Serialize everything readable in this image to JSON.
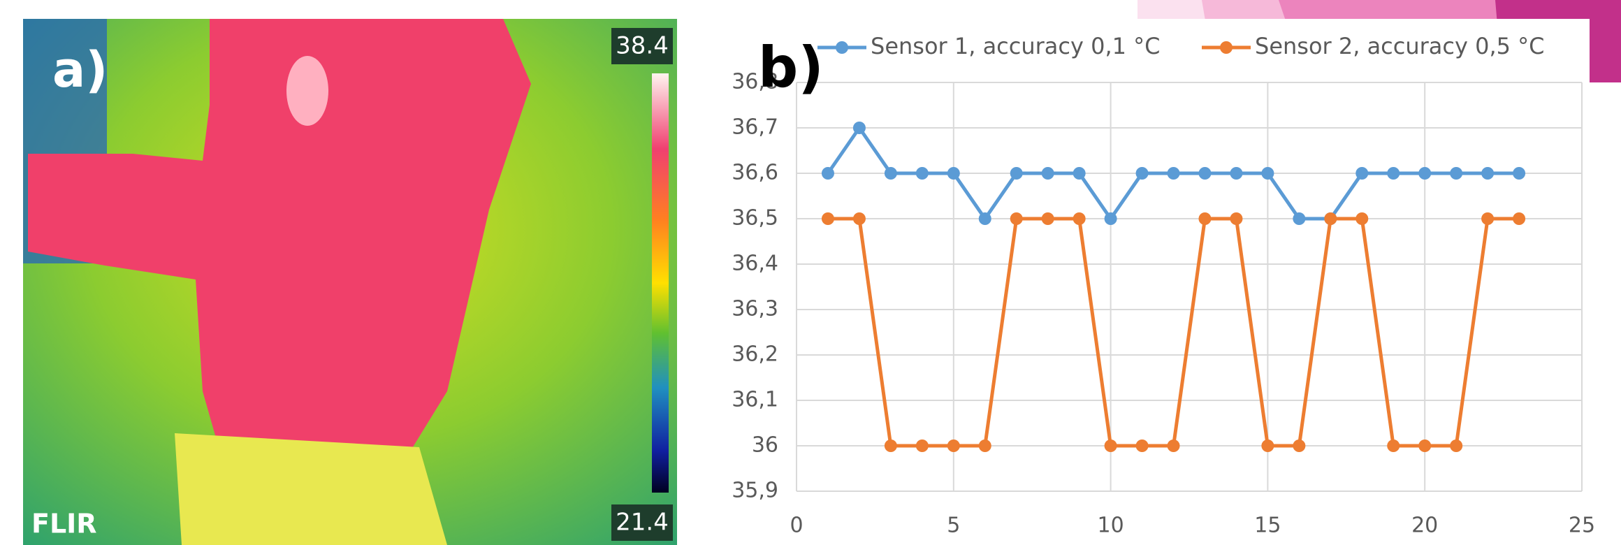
{
  "thermal_image": {
    "label": "a)",
    "max_temp": "38.4",
    "min_temp": "21.4",
    "brand": "FLIR"
  },
  "chart_data": {
    "type": "line",
    "panel_label": "b)",
    "x": [
      1,
      2,
      3,
      4,
      5,
      6,
      7,
      8,
      9,
      10,
      11,
      12,
      13,
      14,
      15,
      16,
      17,
      18,
      19,
      20,
      21,
      22,
      23
    ],
    "series": [
      {
        "name": "Sensor 1, accuracy 0,1 °C",
        "color": "#5b9bd5",
        "values": [
          36.6,
          36.7,
          36.6,
          36.6,
          36.6,
          36.5,
          36.6,
          36.6,
          36.6,
          36.5,
          36.6,
          36.6,
          36.6,
          36.6,
          36.6,
          36.5,
          36.5,
          36.6,
          36.6,
          36.6,
          36.6,
          36.6,
          36.6
        ]
      },
      {
        "name": "Sensor 2, accuracy 0,5 °C",
        "color": "#ed7d31",
        "values": [
          36.5,
          36.5,
          36,
          36,
          36,
          36,
          36.5,
          36.5,
          36.5,
          36,
          36,
          36,
          36.5,
          36.5,
          36,
          36,
          36.5,
          36.5,
          36,
          36,
          36,
          36.5,
          36.5
        ]
      }
    ],
    "xlim": [
      0,
      25
    ],
    "xticks": [
      0,
      5,
      10,
      15,
      20,
      25
    ],
    "ylim": [
      35.9,
      36.8
    ],
    "yticks": [
      {
        "value": 35.9,
        "label": "35,9"
      },
      36,
      {
        "value": 36.1,
        "label": "36,1"
      },
      {
        "value": 36.2,
        "label": "36,2"
      },
      {
        "value": 36.3,
        "label": "36,3"
      },
      {
        "value": 36.4,
        "label": "36,4"
      },
      {
        "value": 36.5,
        "label": "36,5"
      },
      {
        "value": 36.6,
        "label": "36,6"
      },
      {
        "value": 36.7,
        "label": "36,7"
      },
      {
        "value": 36.8,
        "label": "36,8"
      }
    ],
    "grid": true,
    "legend": "top"
  }
}
